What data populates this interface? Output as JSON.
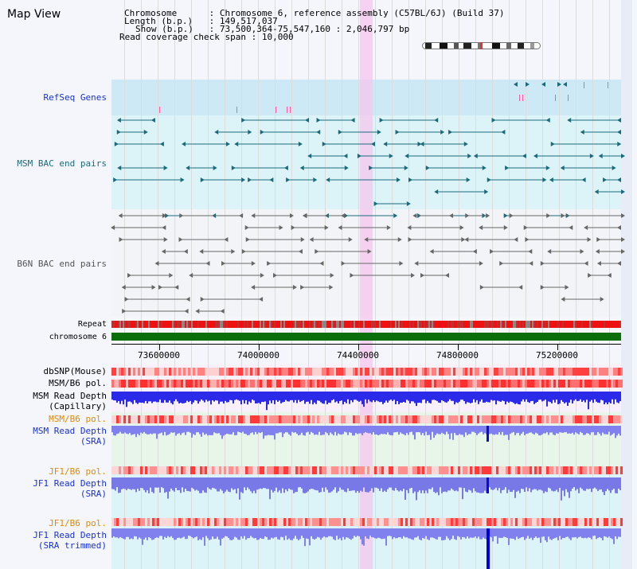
{
  "title": "Map View",
  "header": {
    "chromosome_label": "Chromosome",
    "chromosome_value": "Chromosome 6, reference assembly (C57BL/6J) (Build 37)",
    "length_label": "Length (b.p.)",
    "length_value": "149,517,037",
    "show_label": "Show (b.p.)",
    "show_value": "73,500,364-75,547,160 : 2,046,797 bp",
    "coverage_label": "Read coverage check span",
    "coverage_value": "10,000"
  },
  "tracks": {
    "refseq": "RefSeq Genes",
    "msm_bac": "MSM BAC end pairs",
    "b6n_bac": "B6N BAC end pairs",
    "repeat": "Repeat",
    "chromosome": "chromosome 6",
    "dbsnp": "dbSNP(Mouse)",
    "msm_b6_pol_1": "MSM/B6 pol.",
    "msm_depth_cap_1": "MSM Read Depth",
    "msm_depth_cap_2": "(Capillary)",
    "msm_b6_pol_2": "MSM/B6 pol.",
    "msm_depth_sra_1": "MSM Read Depth",
    "msm_depth_sra_2": "(SRA)",
    "jf1_b6_pol_1": "JF1/B6 pol.",
    "jf1_depth_sra_1": "JF1 Read Depth",
    "jf1_depth_sra_2": "(SRA)",
    "jf1_b6_pol_2": "JF1/B6 pol.",
    "jf1_depth_trim_1": "JF1 Read Depth",
    "jf1_depth_trim_2": "(SRA trimmed)"
  },
  "axis": {
    "ticks": [
      "73600000",
      "74000000",
      "74400000",
      "74800000",
      "75200000"
    ]
  },
  "colors": {
    "refseq_label": "#1a33cc",
    "msm_label": "#1a6b7a",
    "b6n_label": "#555555",
    "orange_label": "#e08a00",
    "blue_label": "#1a33cc",
    "chrom_bar": "#0a6e0a",
    "msm_feature": "#1a6b7a",
    "b6n_feature": "#666666"
  }
}
